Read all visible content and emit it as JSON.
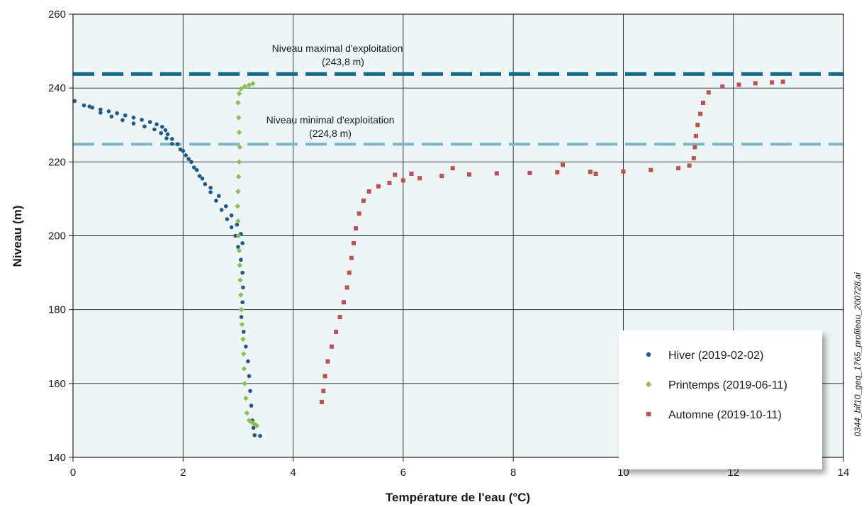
{
  "chart_data": {
    "type": "scatter",
    "xlabel": "Température de l'eau (°C)",
    "ylabel": "Niveau (m)",
    "xlim": [
      0,
      14
    ],
    "ylim": [
      140,
      260
    ],
    "xticks": [
      0,
      2,
      4,
      6,
      8,
      10,
      12,
      14
    ],
    "yticks": [
      140,
      160,
      180,
      200,
      220,
      240,
      260
    ],
    "grid": true,
    "legend_position": "bottom-right",
    "figure_id": "0344_bif10_geq_1765_profileau_200728.ai",
    "reference_lines": [
      {
        "name": "Niveau maximal d'exploitation",
        "value_label": "(243,8 m)",
        "y": 243.8,
        "color": "#0e6d8a"
      },
      {
        "name": "Niveau minimal d'exploitation",
        "value_label": "(224,8 m)",
        "y": 224.8,
        "color": "#7ab8c8"
      }
    ],
    "series": [
      {
        "name": "Hiver (2019-02-02)",
        "color": "#1f5a8a",
        "marker": "circle",
        "points": [
          [
            0.03,
            236.5
          ],
          [
            0.2,
            235.3
          ],
          [
            0.35,
            234.7
          ],
          [
            0.5,
            234.2
          ],
          [
            0.65,
            233.7
          ],
          [
            0.8,
            233.2
          ],
          [
            0.95,
            232.6
          ],
          [
            1.1,
            232.0
          ],
          [
            1.25,
            231.4
          ],
          [
            1.4,
            230.8
          ],
          [
            1.52,
            230.2
          ],
          [
            1.62,
            229.5
          ],
          [
            1.68,
            228.6
          ],
          [
            1.72,
            227.5
          ],
          [
            1.8,
            226.2
          ],
          [
            1.9,
            224.8
          ],
          [
            2.0,
            223.0
          ],
          [
            2.1,
            220.8
          ],
          [
            2.2,
            218.5
          ],
          [
            2.3,
            216.2
          ],
          [
            2.4,
            214.0
          ],
          [
            2.5,
            211.8
          ],
          [
            2.6,
            209.5
          ],
          [
            2.7,
            207.0
          ],
          [
            2.8,
            204.5
          ],
          [
            2.88,
            202.3
          ],
          [
            2.95,
            200.0
          ],
          [
            3.0,
            197.0
          ],
          [
            3.05,
            193.5
          ],
          [
            3.08,
            190.0
          ],
          [
            3.09,
            186.0
          ],
          [
            3.08,
            182.0
          ],
          [
            3.06,
            178.0
          ],
          [
            3.1,
            174.0
          ],
          [
            3.14,
            170.0
          ],
          [
            3.18,
            166.0
          ],
          [
            3.2,
            162.0
          ],
          [
            3.22,
            158.0
          ],
          [
            3.24,
            154.0
          ],
          [
            3.26,
            150.0
          ],
          [
            3.28,
            148.0
          ],
          [
            3.3,
            146.0
          ],
          [
            3.4,
            145.8
          ],
          [
            0.3,
            235.0
          ],
          [
            0.5,
            233.3
          ],
          [
            0.7,
            232.3
          ],
          [
            0.9,
            231.3
          ],
          [
            1.1,
            230.4
          ],
          [
            1.3,
            229.6
          ],
          [
            1.48,
            228.8
          ],
          [
            1.6,
            227.8
          ],
          [
            1.7,
            226.4
          ],
          [
            1.8,
            224.9
          ],
          [
            1.95,
            223.4
          ],
          [
            2.05,
            221.8
          ],
          [
            2.15,
            220.0
          ],
          [
            2.25,
            217.8
          ],
          [
            2.35,
            215.5
          ],
          [
            2.5,
            213.0
          ],
          [
            2.65,
            210.8
          ],
          [
            2.78,
            208.0
          ],
          [
            2.88,
            205.5
          ],
          [
            2.98,
            203.0
          ],
          [
            3.05,
            200.5
          ],
          [
            3.08,
            198.0
          ]
        ]
      },
      {
        "name": "Printemps (2019-06-11)",
        "color": "#8cc152",
        "marker": "diamond",
        "points": [
          [
            3.27,
            241.2
          ],
          [
            3.2,
            240.8
          ],
          [
            3.12,
            240.4
          ],
          [
            3.05,
            239.8
          ],
          [
            3.02,
            238.5
          ],
          [
            3.0,
            236.0
          ],
          [
            3.01,
            232.0
          ],
          [
            3.02,
            228.0
          ],
          [
            3.03,
            224.0
          ],
          [
            3.02,
            220.0
          ],
          [
            3.01,
            216.0
          ],
          [
            3.0,
            212.0
          ],
          [
            2.99,
            208.0
          ],
          [
            3.0,
            204.0
          ],
          [
            3.01,
            200.0
          ],
          [
            3.02,
            196.0
          ],
          [
            3.03,
            192.0
          ],
          [
            3.04,
            188.0
          ],
          [
            3.05,
            184.0
          ],
          [
            3.06,
            180.0
          ],
          [
            3.07,
            176.0
          ],
          [
            3.09,
            172.0
          ],
          [
            3.1,
            168.0
          ],
          [
            3.11,
            164.0
          ],
          [
            3.12,
            160.0
          ],
          [
            3.14,
            156.0
          ],
          [
            3.16,
            152.0
          ],
          [
            3.2,
            150.0
          ],
          [
            3.25,
            149.5
          ],
          [
            3.3,
            149.0
          ],
          [
            3.34,
            148.6
          ]
        ]
      },
      {
        "name": "Automne (2019-10-11)",
        "color": "#c0504d",
        "marker": "square",
        "points": [
          [
            4.52,
            155.0
          ],
          [
            4.55,
            158.0
          ],
          [
            4.58,
            162.0
          ],
          [
            4.63,
            166.0
          ],
          [
            4.7,
            170.0
          ],
          [
            4.78,
            174.0
          ],
          [
            4.85,
            178.0
          ],
          [
            4.92,
            182.0
          ],
          [
            4.98,
            186.0
          ],
          [
            5.02,
            190.0
          ],
          [
            5.06,
            194.0
          ],
          [
            5.1,
            198.0
          ],
          [
            5.14,
            202.0
          ],
          [
            5.2,
            206.0
          ],
          [
            5.28,
            209.5
          ],
          [
            5.38,
            212.0
          ],
          [
            5.55,
            213.4
          ],
          [
            5.75,
            214.3
          ],
          [
            6.0,
            215.0
          ],
          [
            6.3,
            215.6
          ],
          [
            6.7,
            216.2
          ],
          [
            7.2,
            216.6
          ],
          [
            7.7,
            216.9
          ],
          [
            8.3,
            217.0
          ],
          [
            8.8,
            217.2
          ],
          [
            9.4,
            217.3
          ],
          [
            10.0,
            217.4
          ],
          [
            10.5,
            217.8
          ],
          [
            11.0,
            218.3
          ],
          [
            11.2,
            219.0
          ],
          [
            11.28,
            221.0
          ],
          [
            11.3,
            224.0
          ],
          [
            11.32,
            227.0
          ],
          [
            11.35,
            230.0
          ],
          [
            11.4,
            233.0
          ],
          [
            11.45,
            236.0
          ],
          [
            11.55,
            238.8
          ],
          [
            11.8,
            240.4
          ],
          [
            12.1,
            240.9
          ],
          [
            12.4,
            241.3
          ],
          [
            12.7,
            241.5
          ],
          [
            12.9,
            241.7
          ],
          [
            6.9,
            218.3
          ],
          [
            8.9,
            219.2
          ],
          [
            9.5,
            216.8
          ],
          [
            5.85,
            216.5
          ],
          [
            6.15,
            216.8
          ]
        ]
      }
    ]
  }
}
